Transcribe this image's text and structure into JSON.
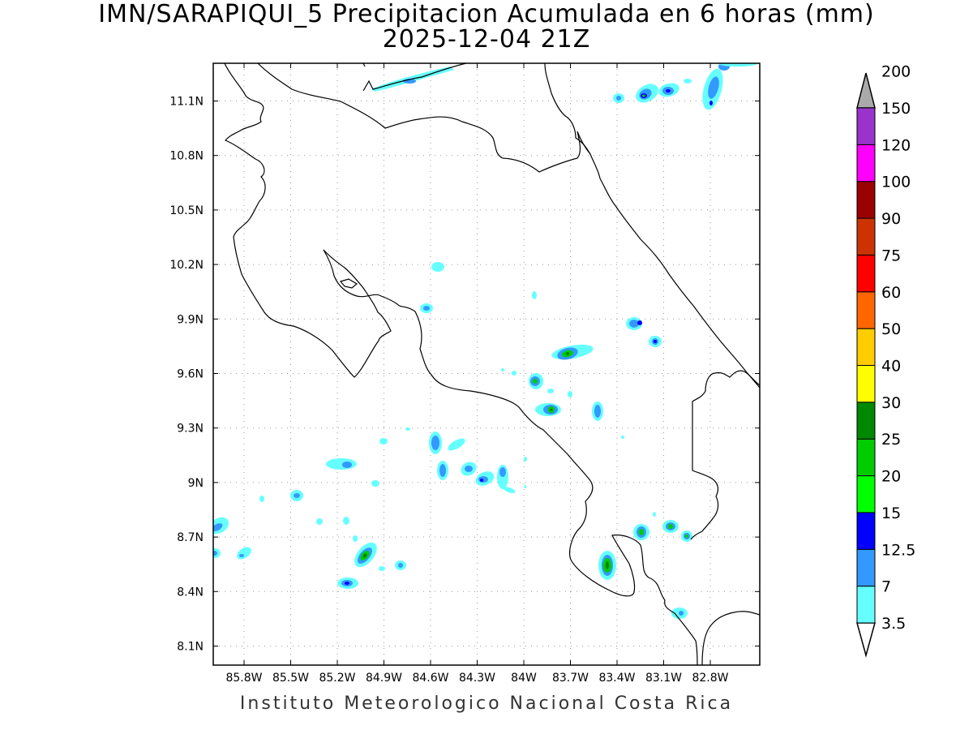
{
  "title": {
    "line1": "IMN/SARAPIQUI_5 Precipitacion Acumulada en 6 horas (mm)",
    "line2": "2025-12-04 21Z"
  },
  "map": {
    "x_ticks": [
      "85.8W",
      "85.5W",
      "85.2W",
      "84.9W",
      "84.6W",
      "84.3W",
      "84W",
      "83.7W",
      "83.4W",
      "83.1W",
      "82.8W"
    ],
    "y_ticks": [
      "11.1N",
      "10.8N",
      "10.5N",
      "10.2N",
      "9.9N",
      "9.6N",
      "9.3N",
      "9N",
      "8.7N",
      "8.4N",
      "8.1N"
    ],
    "gridlines": "dotted"
  },
  "colorbar": {
    "levels": [
      "3.5",
      "7",
      "12.5",
      "15",
      "20",
      "25",
      "30",
      "40",
      "50",
      "60",
      "75",
      "90",
      "100",
      "120",
      "150",
      "200"
    ],
    "colors": [
      "#66ffff",
      "#3399ff",
      "#0000ff",
      "#00ff00",
      "#00cc00",
      "#008800",
      "#ffff00",
      "#ffcc00",
      "#ff6600",
      "#ff0000",
      "#cc3300",
      "#990000",
      "#ff00ff",
      "#9933cc",
      "#f2f2f2",
      "#aaaaaa"
    ]
  },
  "credit": "Instituto Meteorologico Nacional Costa Rica"
}
